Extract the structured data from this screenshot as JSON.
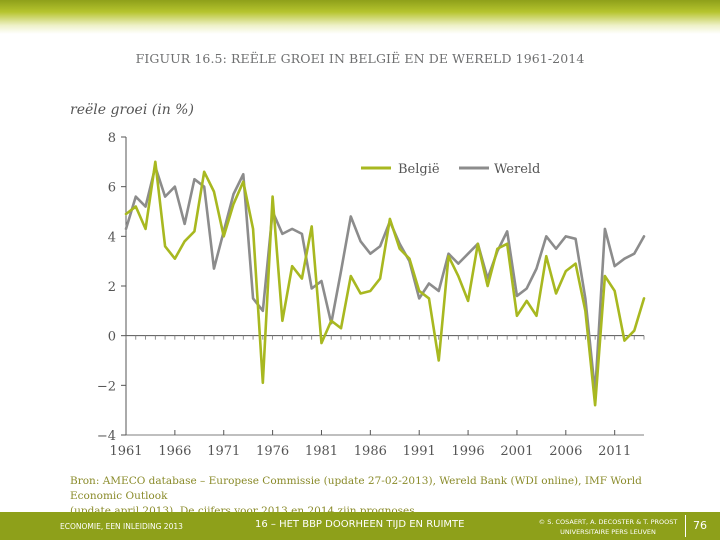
{
  "slide": {
    "footer_left": "ECONOMIE, EEN INLEIDING 2013",
    "footer_center": "16 – HET BBP DOORHEEN TIJD EN RUIMTE",
    "footer_right_line1": "© S. COSAERT, A. DECOSTER & T. PROOST",
    "footer_right_line2": "UNIVERSITAIRE PERS LEUVEN",
    "page_number": "76",
    "source_line1": "Bron: AMECO database – Europese Commissie (update 27-02-2013), Wereld Bank (WDI online), IMF World Economic Outlook",
    "source_line2": "(update april 2013). De cijfers voor 2013 en 2014 zijn prognoses."
  },
  "chart_data": {
    "type": "line",
    "title": "FIGUUR 16.5: REËLE GROEI IN BELGIË EN DE WERELD 1961-2014",
    "ylabel": "reële groei (in %)",
    "xlabel": "",
    "ylim": [
      -4,
      8
    ],
    "xlim": [
      1961,
      2014
    ],
    "yticks": [
      8,
      6,
      4,
      2,
      0,
      -2,
      -4
    ],
    "ytick_labels": [
      "8",
      "6",
      "4",
      "2",
      "0",
      "−2",
      "−4"
    ],
    "xticks": [
      1961,
      1966,
      1971,
      1976,
      1981,
      1986,
      1991,
      1996,
      2001,
      2006,
      2011
    ],
    "xtick_labels": [
      "1961",
      "1966",
      "1971",
      "1976",
      "1981",
      "1986",
      "1991",
      "1996",
      "2001",
      "2006",
      "2011"
    ],
    "legend_position": "top-right",
    "x": [
      1961,
      1962,
      1963,
      1964,
      1965,
      1966,
      1967,
      1968,
      1969,
      1970,
      1971,
      1972,
      1973,
      1974,
      1975,
      1976,
      1977,
      1978,
      1979,
      1980,
      1981,
      1982,
      1983,
      1984,
      1985,
      1986,
      1987,
      1988,
      1989,
      1990,
      1991,
      1992,
      1993,
      1994,
      1995,
      1996,
      1997,
      1998,
      1999,
      2000,
      2001,
      2002,
      2003,
      2004,
      2005,
      2006,
      2007,
      2008,
      2009,
      2010,
      2011,
      2012,
      2013,
      2014
    ],
    "series": [
      {
        "name": "België",
        "color": "#a8b820",
        "values": [
          4.9,
          5.2,
          4.3,
          7.0,
          3.6,
          3.1,
          3.8,
          4.2,
          6.6,
          5.8,
          4.0,
          5.3,
          6.2,
          4.3,
          -1.9,
          5.6,
          0.6,
          2.8,
          2.3,
          4.4,
          -0.3,
          0.6,
          0.3,
          2.4,
          1.7,
          1.8,
          2.3,
          4.7,
          3.5,
          3.1,
          1.8,
          1.5,
          -1.0,
          3.2,
          2.4,
          1.4,
          3.7,
          2.0,
          3.5,
          3.7,
          0.8,
          1.4,
          0.8,
          3.2,
          1.7,
          2.6,
          2.9,
          1.0,
          -2.8,
          2.4,
          1.8,
          -0.2,
          0.2,
          1.5
        ]
      },
      {
        "name": "Wereld",
        "color": "#8c8c8c",
        "values": [
          4.3,
          5.6,
          5.2,
          6.8,
          5.6,
          6.0,
          4.5,
          6.3,
          6.0,
          2.7,
          4.2,
          5.7,
          6.5,
          1.5,
          1.0,
          5.0,
          4.1,
          4.3,
          4.1,
          1.9,
          2.2,
          0.5,
          2.6,
          4.8,
          3.8,
          3.3,
          3.6,
          4.6,
          3.7,
          3.0,
          1.5,
          2.1,
          1.8,
          3.3,
          2.9,
          3.3,
          3.7,
          2.3,
          3.4,
          4.2,
          1.6,
          1.9,
          2.7,
          4.0,
          3.5,
          4.0,
          3.9,
          1.5,
          -2.3,
          4.3,
          2.8,
          3.1,
          3.3,
          4.0
        ]
      }
    ]
  }
}
